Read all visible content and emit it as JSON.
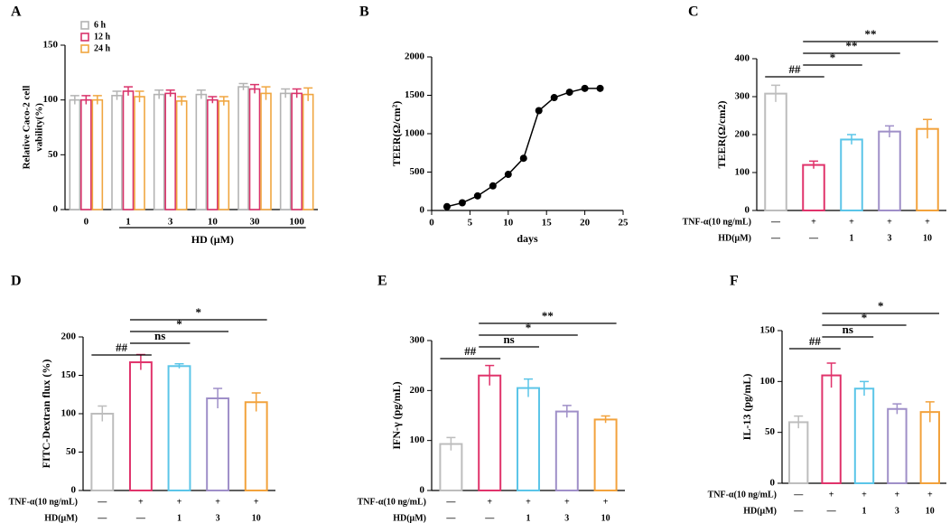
{
  "chart_data": [
    {
      "type": "grouped-bar",
      "panel": "A",
      "ylabel": [
        "Relative Caco-2 cell",
        "vability(%)"
      ],
      "xlabel": "HD (μM)",
      "categories": [
        "0",
        "1",
        "3",
        "10",
        "30",
        "100"
      ],
      "series": [
        {
          "name": "6 h",
          "color": "#b3b3b3",
          "values": [
            100,
            104,
            105,
            105,
            112,
            106
          ],
          "errors": [
            4,
            4,
            4,
            4,
            3,
            4
          ]
        },
        {
          "name": "12 h",
          "color": "#d9336b",
          "values": [
            100,
            108,
            106,
            100,
            110,
            106
          ],
          "errors": [
            4,
            4,
            3,
            3,
            4,
            4
          ]
        },
        {
          "name": "24 h",
          "color": "#f0a640",
          "values": [
            100,
            103,
            99,
            99,
            106,
            105
          ],
          "errors": [
            4,
            5,
            4,
            4,
            6,
            6
          ]
        }
      ],
      "ylim": [
        0,
        150
      ],
      "yticks": [
        0,
        50,
        100,
        150
      ]
    },
    {
      "type": "line",
      "panel": "B",
      "ylabel": "TEER(Ω/cm²)",
      "xlabel": "days",
      "color": "#000000",
      "x": [
        2,
        4,
        6,
        8,
        10,
        12,
        14,
        16,
        18,
        20,
        22
      ],
      "values": [
        50,
        100,
        190,
        320,
        470,
        680,
        1300,
        1470,
        1540,
        1590,
        1590
      ],
      "xlim": [
        0,
        25
      ],
      "xticks": [
        0,
        5,
        10,
        15,
        20,
        25
      ],
      "ylim": [
        0,
        2000
      ],
      "yticks": [
        0,
        500,
        1000,
        1500,
        2000
      ]
    },
    {
      "type": "bar",
      "panel": "C",
      "ylabel": "TEER(Ω/cm2)",
      "colors": [
        "#bdbdbd",
        "#e0336b",
        "#5bc5e8",
        "#9f8fc8",
        "#f2a23c"
      ],
      "values": [
        308,
        120,
        187,
        208,
        215
      ],
      "errors": [
        22,
        10,
        13,
        15,
        25
      ],
      "ylim": [
        0,
        400
      ],
      "yticks": [
        0,
        100,
        200,
        300,
        400
      ],
      "treatments": [
        {
          "label": "TNF-α(10 ng/mL)",
          "values": [
            "—",
            "+",
            "+",
            "+",
            "+"
          ]
        },
        {
          "label": "HD(μM)",
          "values": [
            "—",
            "—",
            "1",
            "3",
            "10"
          ]
        }
      ],
      "annotations": [
        {
          "from": 0,
          "to": 1,
          "label": "##"
        },
        {
          "from": 1,
          "to": 2,
          "label": "*"
        },
        {
          "from": 1,
          "to": 3,
          "label": "**"
        },
        {
          "from": 1,
          "to": 4,
          "label": "**"
        }
      ]
    },
    {
      "type": "bar",
      "panel": "D",
      "ylabel": "FITC-Dextran flux (%)",
      "colors": [
        "#bdbdbd",
        "#e0336b",
        "#5bc5e8",
        "#9f8fc8",
        "#f2a23c"
      ],
      "values": [
        100,
        167,
        162,
        120,
        115
      ],
      "errors": [
        10,
        10,
        3,
        13,
        12
      ],
      "ylim": [
        0,
        200
      ],
      "yticks": [
        0,
        50,
        100,
        150,
        200
      ],
      "treatments": [
        {
          "label": "TNF-α(10 ng/mL)",
          "values": [
            "—",
            "+",
            "+",
            "+",
            "+"
          ]
        },
        {
          "label": "HD(μM)",
          "values": [
            "—",
            "—",
            "1",
            "3",
            "10"
          ]
        }
      ],
      "annotations": [
        {
          "from": 0,
          "to": 1,
          "label": "##"
        },
        {
          "from": 1,
          "to": 2,
          "label": "ns"
        },
        {
          "from": 1,
          "to": 3,
          "label": "*"
        },
        {
          "from": 1,
          "to": 4,
          "label": "*"
        }
      ]
    },
    {
      "type": "bar",
      "panel": "E",
      "ylabel": "IFN-γ (pg/mL)",
      "colors": [
        "#bdbdbd",
        "#e0336b",
        "#5bc5e8",
        "#9f8fc8",
        "#f2a23c"
      ],
      "values": [
        93,
        230,
        205,
        158,
        142
      ],
      "errors": [
        13,
        20,
        18,
        12,
        7
      ],
      "ylim": [
        0,
        300
      ],
      "yticks": [
        0,
        100,
        200,
        300
      ],
      "treatments": [
        {
          "label": "TNF-α(10 ng/mL)",
          "values": [
            "—",
            "+",
            "+",
            "+",
            "+"
          ]
        },
        {
          "label": "HD(μM)",
          "values": [
            "—",
            "—",
            "1",
            "3",
            "10"
          ]
        }
      ],
      "annotations": [
        {
          "from": 0,
          "to": 1,
          "label": "##"
        },
        {
          "from": 1,
          "to": 2,
          "label": "ns"
        },
        {
          "from": 1,
          "to": 3,
          "label": "*"
        },
        {
          "from": 1,
          "to": 4,
          "label": "**"
        }
      ]
    },
    {
      "type": "bar",
      "panel": "F",
      "ylabel": "IL-13 (pg/mL)",
      "colors": [
        "#bdbdbd",
        "#e0336b",
        "#5bc5e8",
        "#9f8fc8",
        "#f2a23c"
      ],
      "values": [
        60,
        106,
        93,
        73,
        70
      ],
      "errors": [
        6,
        12,
        7,
        5,
        10
      ],
      "ylim": [
        0,
        150
      ],
      "yticks": [
        0,
        50,
        100,
        150
      ],
      "treatments": [
        {
          "label": "TNF-α(10 ng/mL)",
          "values": [
            "—",
            "+",
            "+",
            "+",
            "+"
          ]
        },
        {
          "label": "HD(μM)",
          "values": [
            "—",
            "—",
            "1",
            "3",
            "10"
          ]
        }
      ],
      "annotations": [
        {
          "from": 0,
          "to": 1,
          "label": "##"
        },
        {
          "from": 1,
          "to": 2,
          "label": "ns"
        },
        {
          "from": 1,
          "to": 3,
          "label": "*"
        },
        {
          "from": 1,
          "to": 4,
          "label": "*"
        }
      ]
    }
  ]
}
